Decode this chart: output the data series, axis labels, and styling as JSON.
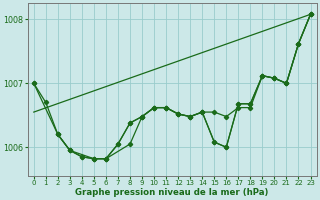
{
  "title": "Graphe pression niveau de la mer (hPa)",
  "bg_color": "#cce8e8",
  "grid_color": "#99cccc",
  "line_color": "#1a6b1a",
  "xlim": [
    -0.5,
    23.5
  ],
  "ylim": [
    1005.55,
    1008.25
  ],
  "yticks": [
    1006,
    1007,
    1008
  ],
  "xticks": [
    0,
    1,
    2,
    3,
    4,
    5,
    6,
    7,
    8,
    9,
    10,
    11,
    12,
    13,
    14,
    15,
    16,
    17,
    18,
    19,
    20,
    21,
    22,
    23
  ],
  "series_main": {
    "x": [
      0,
      1,
      2,
      3,
      4,
      5,
      6,
      7,
      8,
      9,
      10,
      11,
      12,
      13,
      14,
      15,
      16,
      17,
      18,
      19,
      20,
      21,
      22,
      23
    ],
    "y": [
      1007.0,
      1006.7,
      1006.2,
      1005.95,
      1005.85,
      1005.82,
      1005.82,
      1006.05,
      1006.38,
      1006.48,
      1006.62,
      1006.62,
      1006.52,
      1006.48,
      1006.55,
      1006.55,
      1006.48,
      1006.62,
      1006.62,
      1007.12,
      1007.08,
      1007.0,
      1007.62,
      1008.08
    ]
  },
  "series_sparse": {
    "x": [
      0,
      2,
      3,
      5,
      6,
      8,
      9,
      10,
      11,
      12,
      13,
      14,
      15,
      16,
      17,
      18,
      19,
      20,
      21,
      22,
      23
    ],
    "y": [
      1007.0,
      1006.2,
      1005.95,
      1005.82,
      1005.82,
      1006.05,
      1006.48,
      1006.62,
      1006.62,
      1006.52,
      1006.48,
      1006.55,
      1006.08,
      1006.0,
      1006.68,
      1006.68,
      1007.12,
      1007.08,
      1007.0,
      1007.62,
      1008.08
    ]
  },
  "series_hourly": {
    "x": [
      2,
      3,
      4,
      5,
      6,
      7,
      8,
      9,
      10,
      11,
      12,
      13,
      14,
      15,
      16,
      17,
      18,
      19,
      20,
      21,
      22,
      23
    ],
    "y": [
      1006.2,
      1005.95,
      1005.85,
      1005.82,
      1005.82,
      1006.05,
      1006.38,
      1006.48,
      1006.62,
      1006.62,
      1006.52,
      1006.48,
      1006.55,
      1006.08,
      1006.0,
      1006.68,
      1006.68,
      1007.12,
      1007.08,
      1007.0,
      1007.62,
      1008.08
    ]
  },
  "trend_line": {
    "x": [
      0,
      23
    ],
    "y": [
      1006.55,
      1008.08
    ]
  }
}
